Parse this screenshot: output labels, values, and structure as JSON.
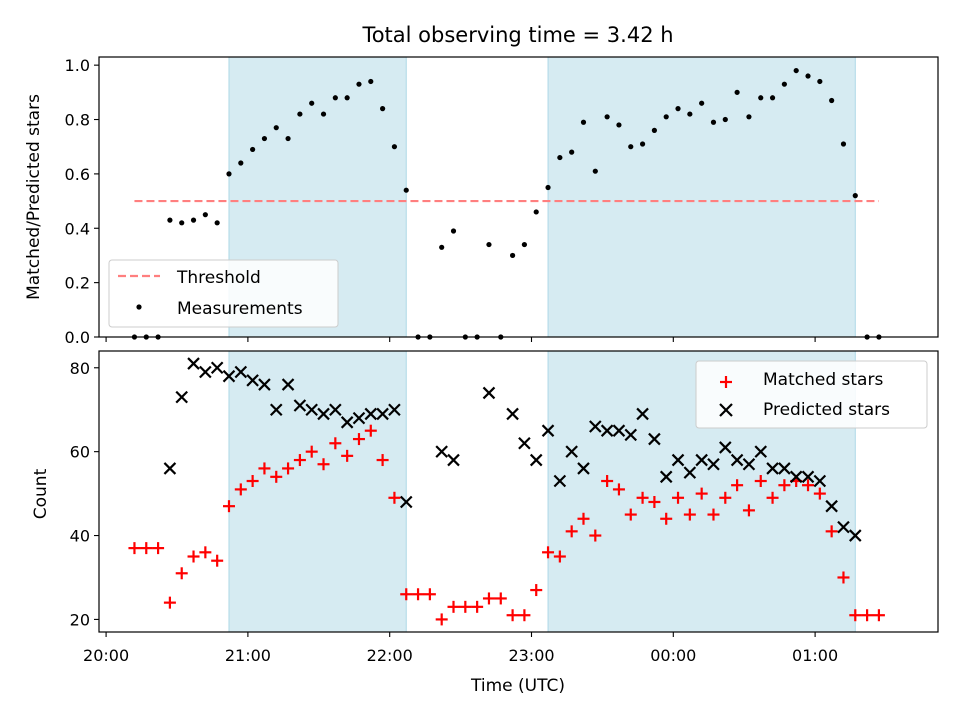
{
  "title": "Total observing time = 3.42 h",
  "colors": {
    "shade": "#add8e6",
    "threshold": "#ff7f7f",
    "matched": "#ff0000",
    "predicted": "#000000",
    "measurement": "#000000"
  },
  "chart_data": [
    {
      "type": "scatter",
      "ylabel": "Matched/Predicted stars",
      "ylim": [
        0,
        1.03
      ],
      "yticks": [
        0.0,
        0.2,
        0.4,
        0.6,
        0.8,
        1.0
      ],
      "ytick_labels": [
        "0.0",
        "0.2",
        "0.4",
        "0.6",
        "0.8",
        "1.0"
      ],
      "x_range": [
        "19:57",
        "01:52"
      ],
      "shaded_intervals": [
        [
          "20:52",
          "22:07"
        ],
        [
          "23:07",
          "01:17"
        ]
      ],
      "threshold": {
        "label": "Threshold",
        "value": 0.5,
        "x_range": [
          "20:12",
          "01:27"
        ]
      },
      "series": [
        {
          "name": "Measurements",
          "points": [
            [
              "20:12",
              0.0
            ],
            [
              "20:17",
              0.0
            ],
            [
              "20:22",
              0.0
            ],
            [
              "20:27",
              0.43
            ],
            [
              "20:32",
              0.42
            ],
            [
              "20:37",
              0.43
            ],
            [
              "20:42",
              0.45
            ],
            [
              "20:47",
              0.42
            ],
            [
              "20:52",
              0.6
            ],
            [
              "20:57",
              0.64
            ],
            [
              "21:02",
              0.69
            ],
            [
              "21:07",
              0.73
            ],
            [
              "21:12",
              0.77
            ],
            [
              "21:17",
              0.73
            ],
            [
              "21:22",
              0.82
            ],
            [
              "21:27",
              0.86
            ],
            [
              "21:32",
              0.82
            ],
            [
              "21:37",
              0.88
            ],
            [
              "21:42",
              0.88
            ],
            [
              "21:47",
              0.93
            ],
            [
              "21:52",
              0.94
            ],
            [
              "21:57",
              0.84
            ],
            [
              "22:02",
              0.7
            ],
            [
              "22:07",
              0.54
            ],
            [
              "22:12",
              0.0
            ],
            [
              "22:17",
              0.0
            ],
            [
              "22:22",
              0.33
            ],
            [
              "22:27",
              0.39
            ],
            [
              "22:32",
              0.0
            ],
            [
              "22:37",
              0.0
            ],
            [
              "22:42",
              0.34
            ],
            [
              "22:47",
              0.0
            ],
            [
              "22:52",
              0.3
            ],
            [
              "22:57",
              0.34
            ],
            [
              "23:02",
              0.46
            ],
            [
              "23:07",
              0.55
            ],
            [
              "23:12",
              0.66
            ],
            [
              "23:17",
              0.68
            ],
            [
              "23:22",
              0.79
            ],
            [
              "23:27",
              0.61
            ],
            [
              "23:32",
              0.81
            ],
            [
              "23:37",
              0.78
            ],
            [
              "23:42",
              0.7
            ],
            [
              "23:47",
              0.71
            ],
            [
              "23:52",
              0.76
            ],
            [
              "23:57",
              0.81
            ],
            [
              "00:02",
              0.84
            ],
            [
              "00:07",
              0.82
            ],
            [
              "00:12",
              0.86
            ],
            [
              "00:17",
              0.79
            ],
            [
              "00:22",
              0.8
            ],
            [
              "00:27",
              0.9
            ],
            [
              "00:32",
              0.81
            ],
            [
              "00:37",
              0.88
            ],
            [
              "00:42",
              0.88
            ],
            [
              "00:47",
              0.93
            ],
            [
              "00:52",
              0.98
            ],
            [
              "00:57",
              0.96
            ],
            [
              "01:02",
              0.94
            ],
            [
              "01:07",
              0.87
            ],
            [
              "01:12",
              0.71
            ],
            [
              "01:17",
              0.52
            ],
            [
              "01:22",
              0.0
            ],
            [
              "01:27",
              0.0
            ]
          ]
        }
      ],
      "legend": {
        "position": "lower-left",
        "entries": [
          "Threshold",
          "Measurements"
        ]
      }
    },
    {
      "type": "scatter",
      "xlabel": "Time (UTC)",
      "ylabel": "Count",
      "ylim": [
        17,
        84
      ],
      "yticks": [
        20,
        40,
        60,
        80
      ],
      "ytick_labels": [
        "20",
        "40",
        "60",
        "80"
      ],
      "xticks": [
        "20:00",
        "21:00",
        "22:00",
        "23:00",
        "00:00",
        "01:00"
      ],
      "x_range": [
        "19:57",
        "01:52"
      ],
      "shaded_intervals": [
        [
          "20:52",
          "22:07"
        ],
        [
          "23:07",
          "01:17"
        ]
      ],
      "series": [
        {
          "name": "Matched stars",
          "marker": "plus",
          "points": [
            [
              "20:12",
              37
            ],
            [
              "20:17",
              37
            ],
            [
              "20:22",
              37
            ],
            [
              "20:27",
              24
            ],
            [
              "20:32",
              31
            ],
            [
              "20:37",
              35
            ],
            [
              "20:42",
              36
            ],
            [
              "20:47",
              34
            ],
            [
              "20:52",
              47
            ],
            [
              "20:57",
              51
            ],
            [
              "21:02",
              53
            ],
            [
              "21:07",
              56
            ],
            [
              "21:12",
              54
            ],
            [
              "21:17",
              56
            ],
            [
              "21:22",
              58
            ],
            [
              "21:27",
              60
            ],
            [
              "21:32",
              57
            ],
            [
              "21:37",
              62
            ],
            [
              "21:42",
              59
            ],
            [
              "21:47",
              63
            ],
            [
              "21:52",
              65
            ],
            [
              "21:57",
              58
            ],
            [
              "22:02",
              49
            ],
            [
              "22:07",
              26
            ],
            [
              "22:12",
              26
            ],
            [
              "22:17",
              26
            ],
            [
              "22:22",
              20
            ],
            [
              "22:27",
              23
            ],
            [
              "22:32",
              23
            ],
            [
              "22:37",
              23
            ],
            [
              "22:42",
              25
            ],
            [
              "22:47",
              25
            ],
            [
              "22:52",
              21
            ],
            [
              "22:57",
              21
            ],
            [
              "23:02",
              27
            ],
            [
              "23:07",
              36
            ],
            [
              "23:12",
              35
            ],
            [
              "23:17",
              41
            ],
            [
              "23:22",
              44
            ],
            [
              "23:27",
              40
            ],
            [
              "23:32",
              53
            ],
            [
              "23:37",
              51
            ],
            [
              "23:42",
              45
            ],
            [
              "23:47",
              49
            ],
            [
              "23:52",
              48
            ],
            [
              "23:57",
              44
            ],
            [
              "00:02",
              49
            ],
            [
              "00:07",
              45
            ],
            [
              "00:12",
              50
            ],
            [
              "00:17",
              45
            ],
            [
              "00:22",
              49
            ],
            [
              "00:27",
              52
            ],
            [
              "00:32",
              46
            ],
            [
              "00:37",
              53
            ],
            [
              "00:42",
              49
            ],
            [
              "00:47",
              52
            ],
            [
              "00:52",
              53
            ],
            [
              "00:57",
              52
            ],
            [
              "01:02",
              50
            ],
            [
              "01:07",
              41
            ],
            [
              "01:12",
              30
            ],
            [
              "01:17",
              21
            ],
            [
              "01:22",
              21
            ],
            [
              "01:27",
              21
            ]
          ]
        },
        {
          "name": "Predicted stars",
          "marker": "x",
          "points": [
            [
              "20:27",
              56
            ],
            [
              "20:32",
              73
            ],
            [
              "20:37",
              81
            ],
            [
              "20:42",
              79
            ],
            [
              "20:47",
              80
            ],
            [
              "20:52",
              78
            ],
            [
              "20:57",
              79
            ],
            [
              "21:02",
              77
            ],
            [
              "21:07",
              76
            ],
            [
              "21:12",
              70
            ],
            [
              "21:17",
              76
            ],
            [
              "21:22",
              71
            ],
            [
              "21:27",
              70
            ],
            [
              "21:32",
              69
            ],
            [
              "21:37",
              70
            ],
            [
              "21:42",
              67
            ],
            [
              "21:47",
              68
            ],
            [
              "21:52",
              69
            ],
            [
              "21:57",
              69
            ],
            [
              "22:02",
              70
            ],
            [
              "22:07",
              48
            ],
            [
              "22:22",
              60
            ],
            [
              "22:27",
              58
            ],
            [
              "22:42",
              74
            ],
            [
              "22:52",
              69
            ],
            [
              "22:57",
              62
            ],
            [
              "23:02",
              58
            ],
            [
              "23:07",
              65
            ],
            [
              "23:12",
              53
            ],
            [
              "23:17",
              60
            ],
            [
              "23:22",
              56
            ],
            [
              "23:27",
              66
            ],
            [
              "23:32",
              65
            ],
            [
              "23:37",
              65
            ],
            [
              "23:42",
              64
            ],
            [
              "23:47",
              69
            ],
            [
              "23:52",
              63
            ],
            [
              "23:57",
              54
            ],
            [
              "00:02",
              58
            ],
            [
              "00:07",
              55
            ],
            [
              "00:12",
              58
            ],
            [
              "00:17",
              57
            ],
            [
              "00:22",
              61
            ],
            [
              "00:27",
              58
            ],
            [
              "00:32",
              57
            ],
            [
              "00:37",
              60
            ],
            [
              "00:42",
              56
            ],
            [
              "00:47",
              56
            ],
            [
              "00:52",
              54
            ],
            [
              "00:57",
              54
            ],
            [
              "01:02",
              53
            ],
            [
              "01:07",
              47
            ],
            [
              "01:12",
              42
            ],
            [
              "01:17",
              40
            ]
          ]
        }
      ],
      "legend": {
        "position": "upper-right",
        "entries": [
          "Matched stars",
          "Predicted stars"
        ]
      }
    }
  ]
}
